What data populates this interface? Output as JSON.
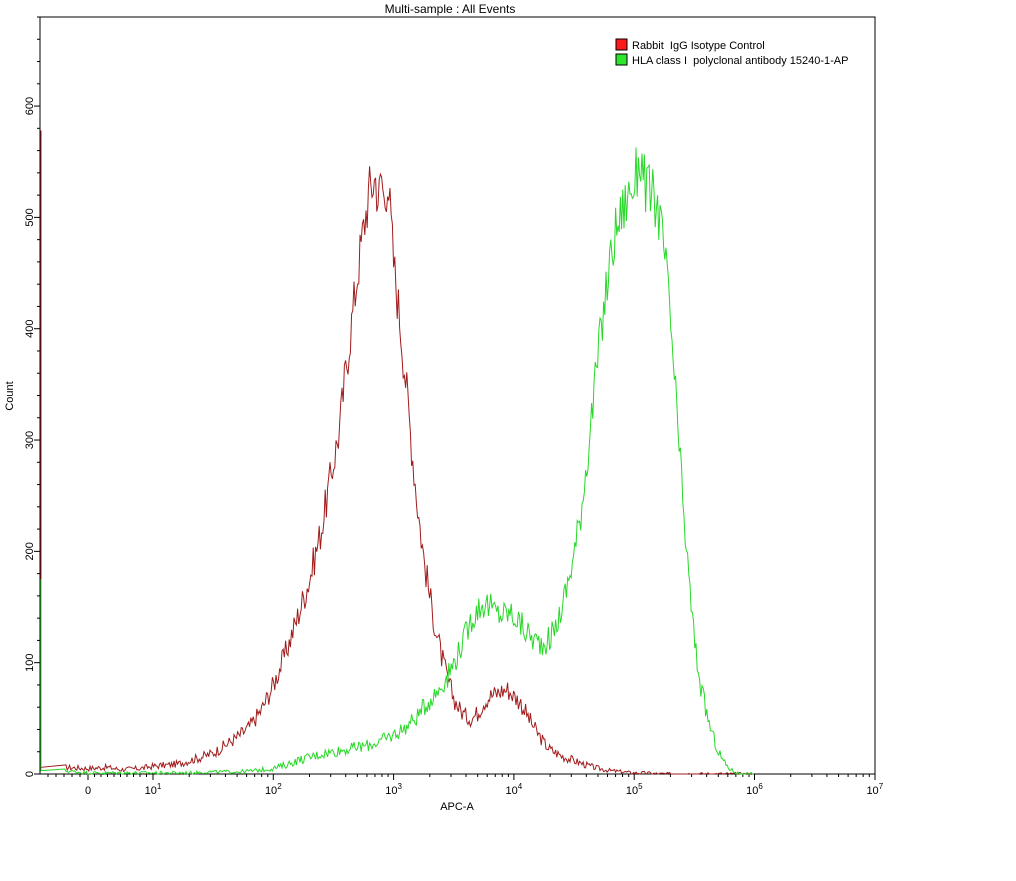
{
  "chart_data": {
    "type": "line",
    "subtype": "flow-cytometry-histogram",
    "title": "Multi-sample : All Events",
    "xlabel": "APC-A",
    "ylabel": "Count",
    "x_scale": "biexponential",
    "xlim": [
      -5,
      10000000
    ],
    "ylim": [
      0,
      680
    ],
    "x_ticks": [
      {
        "value": 0,
        "base": "0",
        "exp": ""
      },
      {
        "value": 10,
        "base": "10",
        "exp": "1"
      },
      {
        "value": 100,
        "base": "10",
        "exp": "2"
      },
      {
        "value": 1000,
        "base": "10",
        "exp": "3"
      },
      {
        "value": 10000,
        "base": "10",
        "exp": "4"
      },
      {
        "value": 100000,
        "base": "10",
        "exp": "5"
      },
      {
        "value": 1000000,
        "base": "10",
        "exp": "6"
      },
      {
        "value": 10000000,
        "base": "10",
        "exp": "7"
      }
    ],
    "y_ticks": [
      0,
      100,
      200,
      300,
      400,
      500,
      600
    ],
    "grid": false,
    "legend_position": "top-right",
    "series": [
      {
        "name": "Rabbit  IgG Isotype Control",
        "color": "#a01c1c",
        "legend_color": "#ff1a1a",
        "left_edge_count": 578,
        "points": [
          [
            -3,
            6
          ],
          [
            0,
            5
          ],
          [
            3,
            6
          ],
          [
            5,
            4
          ],
          [
            8,
            5
          ],
          [
            10,
            7
          ],
          [
            13,
            8
          ],
          [
            16,
            9
          ],
          [
            20,
            12
          ],
          [
            25,
            15
          ],
          [
            32,
            19
          ],
          [
            40,
            26
          ],
          [
            50,
            33
          ],
          [
            63,
            42
          ],
          [
            80,
            58
          ],
          [
            100,
            80
          ],
          [
            126,
            108
          ],
          [
            158,
            140
          ],
          [
            200,
            175
          ],
          [
            251,
            220
          ],
          [
            316,
            280
          ],
          [
            355,
            310
          ],
          [
            398,
            360
          ],
          [
            447,
            405
          ],
          [
            501,
            450
          ],
          [
            562,
            490
          ],
          [
            631,
            525
          ],
          [
            708,
            535
          ],
          [
            750,
            515
          ],
          [
            794,
            538
          ],
          [
            841,
            510
          ],
          [
            891,
            540
          ],
          [
            944,
            500
          ],
          [
            1000,
            460
          ],
          [
            1122,
            410
          ],
          [
            1259,
            355
          ],
          [
            1413,
            295
          ],
          [
            1585,
            240
          ],
          [
            1778,
            195
          ],
          [
            1995,
            160
          ],
          [
            2239,
            130
          ],
          [
            2512,
            105
          ],
          [
            2818,
            85
          ],
          [
            3162,
            68
          ],
          [
            3548,
            58
          ],
          [
            3981,
            52
          ],
          [
            4467,
            50
          ],
          [
            5012,
            55
          ],
          [
            5623,
            65
          ],
          [
            6310,
            70
          ],
          [
            7079,
            72
          ],
          [
            7943,
            75
          ],
          [
            8913,
            76
          ],
          [
            10000,
            70
          ],
          [
            11220,
            65
          ],
          [
            12589,
            55
          ],
          [
            14125,
            45
          ],
          [
            15849,
            36
          ],
          [
            17783,
            28
          ],
          [
            19953,
            22
          ],
          [
            25119,
            16
          ],
          [
            31623,
            12
          ],
          [
            39811,
            8
          ],
          [
            50119,
            5
          ],
          [
            63096,
            3
          ],
          [
            79433,
            2
          ],
          [
            100000,
            1
          ],
          [
            125893,
            1
          ],
          [
            158489,
            0
          ],
          [
            1000000,
            0
          ]
        ]
      },
      {
        "name": "HLA class I  polyclonal antibody 15240-1-AP",
        "color": "#28d828",
        "legend_color": "#2ee62e",
        "left_edge_count": 175,
        "points": [
          [
            -3,
            3
          ],
          [
            0,
            1
          ],
          [
            5,
            1
          ],
          [
            10,
            1
          ],
          [
            20,
            1
          ],
          [
            30,
            2
          ],
          [
            50,
            2
          ],
          [
            70,
            3
          ],
          [
            100,
            5
          ],
          [
            126,
            8
          ],
          [
            158,
            12
          ],
          [
            200,
            15
          ],
          [
            251,
            18
          ],
          [
            316,
            20
          ],
          [
            398,
            22
          ],
          [
            501,
            24
          ],
          [
            631,
            26
          ],
          [
            794,
            30
          ],
          [
            1000,
            35
          ],
          [
            1259,
            42
          ],
          [
            1585,
            52
          ],
          [
            1778,
            60
          ],
          [
            1995,
            66
          ],
          [
            2239,
            72
          ],
          [
            2512,
            80
          ],
          [
            2818,
            88
          ],
          [
            3162,
            100
          ],
          [
            3548,
            112
          ],
          [
            3981,
            125
          ],
          [
            4467,
            140
          ],
          [
            5012,
            148
          ],
          [
            5623,
            153
          ],
          [
            6310,
            150
          ],
          [
            7079,
            145
          ],
          [
            7943,
            143
          ],
          [
            8913,
            145
          ],
          [
            10000,
            142
          ],
          [
            11220,
            135
          ],
          [
            12589,
            128
          ],
          [
            14125,
            122
          ],
          [
            15849,
            118
          ],
          [
            17783,
            118
          ],
          [
            19953,
            122
          ],
          [
            22387,
            132
          ],
          [
            25119,
            150
          ],
          [
            28184,
            172
          ],
          [
            31623,
            198
          ],
          [
            35481,
            230
          ],
          [
            39811,
            275
          ],
          [
            44668,
            325
          ],
          [
            50119,
            375
          ],
          [
            56234,
            420
          ],
          [
            63096,
            460
          ],
          [
            70795,
            490
          ],
          [
            79433,
            505
          ],
          [
            89125,
            520
          ],
          [
            100000,
            530
          ],
          [
            112202,
            555
          ],
          [
            125893,
            525
          ],
          [
            141254,
            520
          ],
          [
            158489,
            505
          ],
          [
            177828,
            470
          ],
          [
            199526,
            410
          ],
          [
            223872,
            330
          ],
          [
            251189,
            250
          ],
          [
            281838,
            180
          ],
          [
            316228,
            120
          ],
          [
            354813,
            80
          ],
          [
            398107,
            55
          ],
          [
            446684,
            35
          ],
          [
            501187,
            20
          ],
          [
            562341,
            10
          ],
          [
            630957,
            4
          ],
          [
            707946,
            1
          ],
          [
            794328,
            0
          ],
          [
            1000000,
            0
          ]
        ]
      }
    ]
  }
}
